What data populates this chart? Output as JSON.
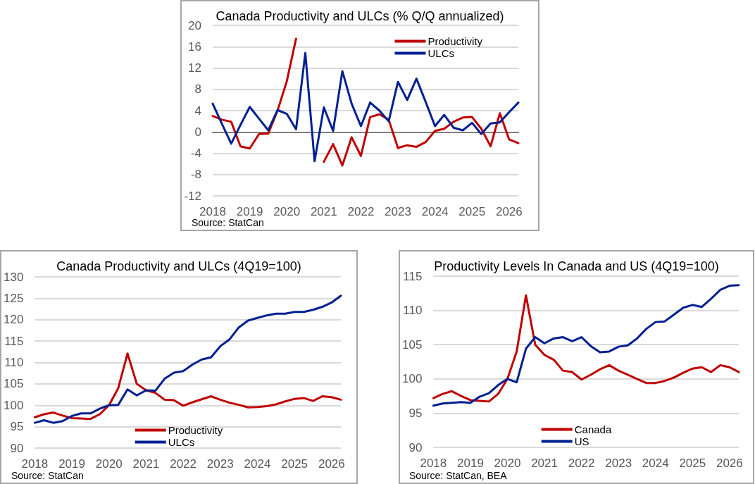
{
  "chart_data": [
    {
      "type": "line",
      "title": "Canada Productivity and ULCs (% Q/Q annualized)",
      "categories": [
        "2018",
        null,
        null,
        null,
        "2019",
        null,
        null,
        null,
        "2020",
        null,
        null,
        null,
        "2021",
        null,
        null,
        null,
        "2022",
        null,
        null,
        null,
        "2023",
        null,
        null,
        null,
        "2024",
        null,
        null,
        null,
        "2025",
        null,
        null,
        null,
        "2026",
        null
      ],
      "series": [
        {
          "name": "Productivity",
          "color": "#c00000",
          "values": [
            3.0,
            2.3,
            1.9,
            -2.7,
            -3.1,
            -0.4,
            -0.3,
            4.0,
            9.5,
            17.5,
            null,
            null,
            -5.6,
            -2.3,
            -6.3,
            -1.0,
            -4.5,
            2.8,
            3.3,
            2.3,
            -3.0,
            -2.5,
            -2.8,
            -1.9,
            0.2,
            0.6,
            1.9,
            2.7,
            2.8,
            0.6,
            -2.7,
            3.5,
            -1.4,
            -2.1
          ]
        },
        {
          "name": "ULCs",
          "color": "#002091",
          "values": [
            5.3,
            1.5,
            -2.2,
            1.3,
            4.7,
            2.5,
            0.3,
            4.1,
            3.4,
            0.5,
            14.8,
            -5.5,
            4.6,
            0.2,
            11.4,
            5.3,
            1.1,
            5.5,
            4.0,
            2.0,
            9.4,
            6.0,
            10.0,
            5.6,
            1.1,
            3.2,
            0.8,
            0.3,
            1.7,
            -0.4,
            1.6,
            1.8,
            3.7,
            5.5
          ]
        }
      ],
      "ylim": [
        -12,
        20
      ],
      "yticks": [
        -12,
        -8,
        -4,
        0,
        4,
        8,
        12,
        16,
        20
      ],
      "grid": "y",
      "legend": "top right",
      "marker": "none",
      "line_style": "solid",
      "annotations": [
        "Source: StatCan"
      ]
    },
    {
      "type": "line",
      "title": "Canada Productivity and ULCs (4Q19=100)",
      "categories": [
        "2018",
        null,
        null,
        null,
        "2019",
        null,
        null,
        null,
        "2020",
        null,
        null,
        null,
        "2021",
        null,
        null,
        null,
        "2022",
        null,
        null,
        null,
        "2023",
        null,
        null,
        null,
        "2024",
        null,
        null,
        null,
        "2025",
        null,
        null,
        null,
        "2026",
        null
      ],
      "series": [
        {
          "name": "Productivity",
          "color": "#c00000",
          "values": [
            97.2,
            97.9,
            98.3,
            97.6,
            97.0,
            96.9,
            96.8,
            97.9,
            100.0,
            104.0,
            112.1,
            105.0,
            103.5,
            102.9,
            101.3,
            101.2,
            99.9,
            100.7,
            101.4,
            102.1,
            101.3,
            100.6,
            100.1,
            99.5,
            99.6,
            99.8,
            100.2,
            100.9,
            101.5,
            101.7,
            101.0,
            102.1,
            101.9,
            101.3
          ]
        },
        {
          "name": "ULCs",
          "color": "#002091",
          "values": [
            95.9,
            96.5,
            95.9,
            96.3,
            97.5,
            98.1,
            98.1,
            99.2,
            100.0,
            100.1,
            103.7,
            102.3,
            103.5,
            103.4,
            106.2,
            107.6,
            108.0,
            109.5,
            110.7,
            111.2,
            113.8,
            115.4,
            118.2,
            119.8,
            120.4,
            121.0,
            121.4,
            121.4,
            121.8,
            121.8,
            122.3,
            123.0,
            124.0,
            125.6
          ]
        }
      ],
      "ylim": [
        90,
        130
      ],
      "yticks": [
        90,
        95,
        100,
        105,
        110,
        115,
        120,
        125,
        130
      ],
      "grid": "y",
      "legend": "bottom",
      "marker": "none",
      "line_style": "solid",
      "annotations": [
        "Source: StatCan"
      ]
    },
    {
      "type": "line",
      "title": "Productivity Levels In Canada and US (4Q19=100)",
      "categories": [
        "2018",
        null,
        null,
        null,
        "2019",
        null,
        null,
        null,
        "2020",
        null,
        null,
        null,
        "2021",
        null,
        null,
        null,
        "2022",
        null,
        null,
        null,
        "2023",
        null,
        null,
        null,
        "2024",
        null,
        null,
        null,
        "2025",
        null,
        null,
        null,
        "2026",
        null
      ],
      "series": [
        {
          "name": "Canada",
          "color": "#c00000",
          "values": [
            97.2,
            97.8,
            98.2,
            97.5,
            96.9,
            96.8,
            96.7,
            97.8,
            100.0,
            104.0,
            112.2,
            105.0,
            103.5,
            102.8,
            101.2,
            101.0,
            99.9,
            100.6,
            101.4,
            102.0,
            101.2,
            100.6,
            100.0,
            99.4,
            99.4,
            99.7,
            100.2,
            100.9,
            101.5,
            101.7,
            101.0,
            102.0,
            101.7,
            101.0
          ]
        },
        {
          "name": "US",
          "color": "#002091",
          "values": [
            96.1,
            96.4,
            96.5,
            96.6,
            96.5,
            97.4,
            97.9,
            99.1,
            100.0,
            99.5,
            104.4,
            106.1,
            105.2,
            105.9,
            106.1,
            105.5,
            106.1,
            104.8,
            103.9,
            104.0,
            104.7,
            104.9,
            105.9,
            107.3,
            108.3,
            108.4,
            109.4,
            110.4,
            110.8,
            110.5,
            111.7,
            113.0,
            113.6,
            113.7
          ]
        }
      ],
      "ylim": [
        90,
        115
      ],
      "yticks": [
        90,
        95,
        100,
        105,
        110,
        115
      ],
      "grid": "y",
      "legend": "bottom",
      "marker": "none",
      "line_style": "solid",
      "annotations": [
        "Source: StatCan, BEA"
      ]
    }
  ]
}
